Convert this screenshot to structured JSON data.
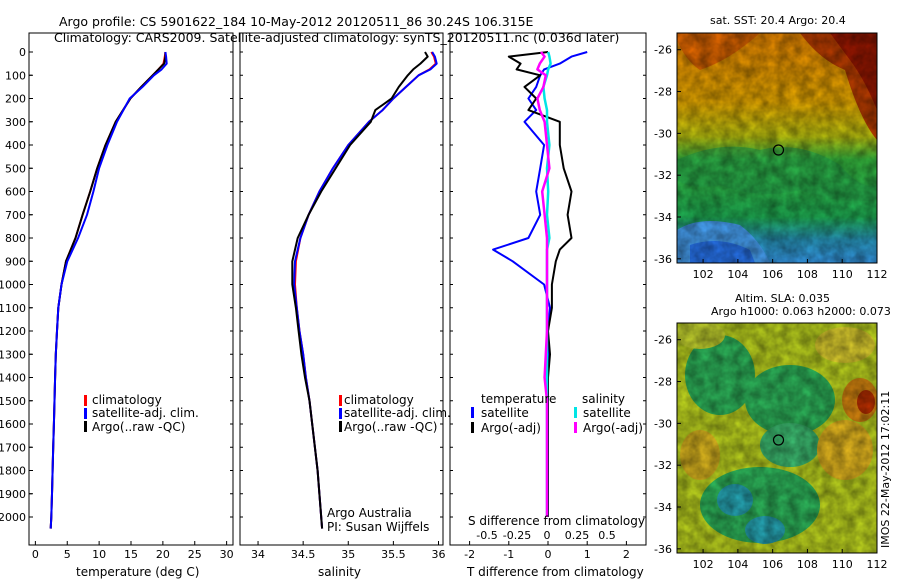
{
  "titles": {
    "line1": "Argo profile: CS 5901622_184 10-May-2012 20120511_86 30.24S 106.315E",
    "line2": "Climatology: CARS2009. Satellite-adjusted climatology: synTS_20120511.nc (0.036d later)"
  },
  "map_titles": {
    "sst": "sat. SST: 20.4 Argo: 20.4",
    "sla_line1": "Altim. SLA: 0.035",
    "sla_line2": "Argo h1000: 0.063 h2000: 0.073"
  },
  "credits": {
    "argo": "Argo Australia",
    "pi": "PI: Susan Wijffels",
    "imos": "IMOS 22-May-2012 17:02:11"
  },
  "colors": {
    "climatology": "#ff0000",
    "satellite": "#0000ff",
    "argo": "#000000",
    "sal_satellite": "#00e5e5",
    "sal_argo": "#ff00ff"
  },
  "legend_profile": [
    "climatology",
    "satellite-adj. clim.",
    "Argo(..raw -QC)"
  ],
  "legend_diff": {
    "temperature": "temperature",
    "salinity": "salinity",
    "satellite": "satellite",
    "argo": "Argo(-adj)"
  },
  "axes": {
    "depth_ticks": [
      "0",
      "100",
      "200",
      "300",
      "400",
      "500",
      "600",
      "700",
      "800",
      "900",
      "1000",
      "1100",
      "1200",
      "1300",
      "1400",
      "1500",
      "1600",
      "1700",
      "1800",
      "1900",
      "2000"
    ],
    "temp_ticks": [
      "0",
      "5",
      "10",
      "15",
      "20",
      "25",
      "30"
    ],
    "temp_label": "temperature (deg C)",
    "sal_ticks": [
      "34",
      "34.5",
      "35",
      "35.5",
      "36"
    ],
    "sal_label": "salinity",
    "tdiff_ticks": [
      "-2",
      "-1",
      "0",
      "1",
      "2"
    ],
    "tdiff_label": "T difference from climatology",
    "sdiff_ticks": [
      "-0.5",
      "-0.25",
      "0",
      "0.25",
      "0.5"
    ],
    "sdiff_label": "S difference from climatology",
    "map_lat_ticks": [
      "-26",
      "-28",
      "-30",
      "-32",
      "-34",
      "-36"
    ],
    "map_lon_ticks": [
      "102",
      "104",
      "106",
      "108",
      "110",
      "112"
    ]
  },
  "chart_data": [
    {
      "type": "line",
      "title": "",
      "xlabel": "temperature (deg C)",
      "ylabel": "",
      "xlim": [
        -1,
        31
      ],
      "ylim": [
        2070,
        0
      ],
      "depth": [
        0,
        20,
        50,
        75,
        100,
        150,
        200,
        300,
        400,
        500,
        600,
        700,
        800,
        900,
        1000,
        1100,
        1200,
        1300,
        1400,
        1500,
        1600,
        1700,
        1800,
        1900,
        2000,
        2050
      ],
      "series": [
        {
          "name": "climatology",
          "values": [
            20.4,
            20.3,
            20.1,
            19.3,
            18.4,
            16.6,
            14.9,
            12.6,
            11.0,
            9.7,
            8.6,
            7.4,
            6.3,
            4.8,
            4.1,
            3.6,
            3.4,
            3.2,
            3.1,
            3.0,
            2.9,
            2.8,
            2.7,
            2.6,
            2.5,
            2.4
          ]
        },
        {
          "name": "satellite-adj. clim.",
          "values": [
            20.4,
            20.4,
            20.2,
            19.3,
            18.4,
            16.6,
            14.9,
            12.6,
            11.0,
            9.7,
            8.6,
            7.4,
            6.3,
            4.8,
            4.1,
            3.6,
            3.4,
            3.2,
            3.1,
            3.0,
            2.9,
            2.8,
            2.7,
            2.6,
            2.5,
            2.4
          ]
        },
        {
          "name": "Argo(..raw -QC)",
          "values": [
            20.4,
            20.5,
            20.6,
            19.8,
            18.6,
            16.8,
            14.8,
            12.8,
            11.3,
            10.0,
            9.1,
            8.1,
            6.7,
            5.0,
            4.1,
            3.6,
            3.4,
            3.2,
            3.1,
            3.0,
            2.9,
            2.8,
            2.7,
            2.6,
            2.5,
            2.4
          ]
        }
      ]
    },
    {
      "type": "line",
      "title": "",
      "xlabel": "salinity",
      "ylabel": "",
      "xlim": [
        33.8,
        36.05
      ],
      "ylim": [
        2070,
        0
      ],
      "depth": [
        0,
        20,
        50,
        75,
        100,
        150,
        200,
        250,
        300,
        400,
        500,
        600,
        700,
        800,
        900,
        1000,
        1100,
        1200,
        1300,
        1400,
        1500,
        1600,
        1700,
        1800,
        1900,
        2000,
        2050
      ],
      "series": [
        {
          "name": "climatology",
          "values": [
            35.92,
            35.95,
            35.97,
            35.9,
            35.78,
            35.64,
            35.5,
            35.38,
            35.23,
            35.0,
            34.83,
            34.68,
            34.56,
            34.47,
            34.42,
            34.41,
            34.43,
            34.46,
            34.5,
            34.53,
            34.57,
            34.6,
            34.63,
            34.66,
            34.68,
            34.7,
            34.71
          ]
        },
        {
          "name": "satellite-adj. clim.",
          "values": [
            35.93,
            35.96,
            35.98,
            35.91,
            35.78,
            35.64,
            35.5,
            35.38,
            35.23,
            35.0,
            34.83,
            34.68,
            34.56,
            34.47,
            34.41,
            34.4,
            34.43,
            34.46,
            34.5,
            34.53,
            34.57,
            34.6,
            34.63,
            34.66,
            34.68,
            34.7,
            34.71
          ]
        },
        {
          "name": "Argo(..raw -QC)",
          "values": [
            35.85,
            35.88,
            35.8,
            35.72,
            35.66,
            35.56,
            35.48,
            35.3,
            35.25,
            35.02,
            34.86,
            34.7,
            34.56,
            34.44,
            34.38,
            34.38,
            34.42,
            34.45,
            34.48,
            34.52,
            34.57,
            34.6,
            34.63,
            34.66,
            34.68,
            34.7,
            34.71
          ]
        }
      ]
    },
    {
      "type": "line",
      "title": "",
      "xlabel": "T difference from climatology",
      "ylabel": "S difference from climatology",
      "xlim": [
        -2.5,
        2.5
      ],
      "ylim": [
        2070,
        0
      ],
      "depth": [
        0,
        20,
        50,
        75,
        100,
        150,
        200,
        250,
        300,
        400,
        500,
        600,
        700,
        800,
        850,
        900,
        1000,
        1100,
        1200,
        1300,
        1400,
        1500,
        1600,
        1700,
        1800,
        1900,
        2000
      ],
      "series": [
        {
          "name": "temperature satellite",
          "values": [
            1.0,
            0.6,
            0.3,
            -0.1,
            -0.2,
            -0.3,
            -0.5,
            -0.3,
            -0.6,
            -0.1,
            -0.2,
            -0.3,
            -0.2,
            -0.5,
            -1.4,
            -0.9,
            -0.1,
            0.05,
            0.0,
            0.0,
            0.0,
            0.0,
            0.0,
            0.0,
            0.0,
            0.0,
            0.0
          ]
        },
        {
          "name": "temperature Argo(-adj)",
          "values": [
            0.0,
            -1.0,
            -0.7,
            -0.8,
            -0.2,
            -0.6,
            -0.3,
            -0.5,
            0.3,
            0.3,
            0.4,
            0.6,
            0.5,
            0.6,
            0.3,
            0.2,
            0.1,
            0.1,
            0.0,
            0.05,
            0.0,
            0.0,
            0.0,
            0.0,
            0.0,
            0.0,
            0.0
          ]
        },
        {
          "name": "salinity satellite",
          "values": [
            0.01,
            0.02,
            0.03,
            0.01,
            0.0,
            -0.03,
            -0.02,
            0.0,
            0.0,
            0.02,
            0.0,
            0.01,
            0.0,
            0.02,
            0.0,
            0.0,
            0.0,
            0.0,
            0.0,
            0.0,
            0.0,
            0.0,
            0.0,
            0.0,
            0.0,
            0.0,
            0.0
          ]
        },
        {
          "name": "salinity Argo(-adj)",
          "values": [
            -0.05,
            -0.02,
            -0.06,
            -0.08,
            -0.01,
            -0.03,
            -0.08,
            -0.06,
            -0.02,
            0.0,
            0.02,
            -0.04,
            -0.02,
            0.0,
            0.0,
            0.0,
            0.0,
            0.0,
            0.0,
            -0.01,
            -0.02,
            0.0,
            0.0,
            0.0,
            0.0,
            0.0,
            0.0
          ]
        }
      ]
    }
  ]
}
